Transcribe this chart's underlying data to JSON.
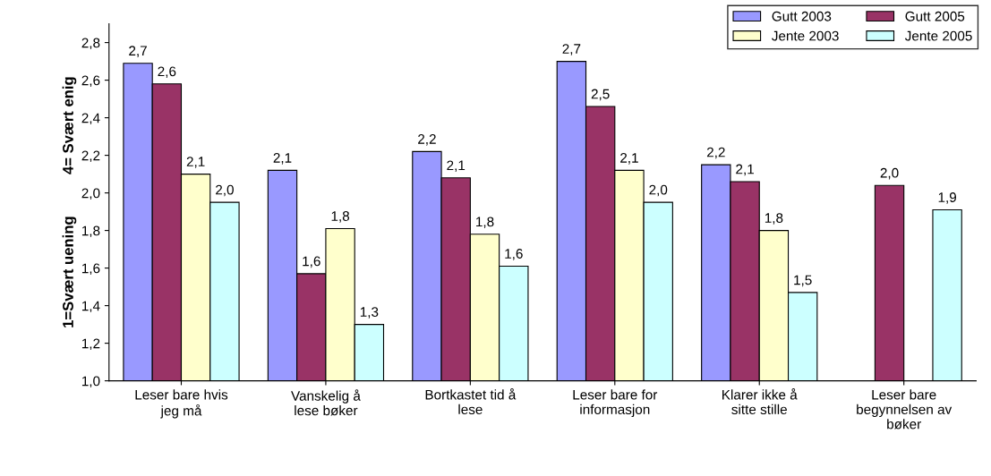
{
  "chart_data": {
    "type": "bar",
    "ylabel": "1=Svært uening          4= Svært enig",
    "categories": [
      "Leser bare hvis\njeg må",
      "Vanskelig å\nlese bøker",
      "Bortkastet tid å\nlese",
      "Leser bare for\ninformasjon",
      "Klarer ikke å\nsitte stille",
      "Leser bare\nbegynnelsen av\nbøker"
    ],
    "series": [
      {
        "name": "Gutt 2003",
        "color": "#9999ff",
        "values": [
          2.69,
          2.12,
          2.22,
          2.7,
          2.15,
          null
        ],
        "value_labels": [
          "2,7",
          "2,1",
          "2,2",
          "2,7",
          "2,2",
          null
        ]
      },
      {
        "name": "Gutt 2005",
        "color": "#993366",
        "values": [
          2.58,
          1.57,
          2.08,
          2.46,
          2.06,
          2.04
        ],
        "value_labels": [
          "2,6",
          "1,6",
          "2,1",
          "2,5",
          "2,1",
          "2,0"
        ]
      },
      {
        "name": "Jente 2003",
        "color": "#ffffcc",
        "values": [
          2.1,
          1.81,
          1.78,
          2.12,
          1.8,
          null
        ],
        "value_labels": [
          "2,1",
          "1,8",
          "1,8",
          "2,1",
          "1,8",
          null
        ]
      },
      {
        "name": "Jente 2005",
        "color": "#ccffff",
        "values": [
          1.95,
          1.3,
          1.61,
          1.95,
          1.47,
          1.91
        ],
        "value_labels": [
          "2,0",
          "1,3",
          "1,6",
          "2,0",
          "1,5",
          "1,9"
        ]
      }
    ],
    "ylim": [
      1.0,
      2.9
    ],
    "yticks": [
      {
        "value": 1.0,
        "label": "1,0"
      },
      {
        "value": 1.2,
        "label": "1,2"
      },
      {
        "value": 1.4,
        "label": "1,4"
      },
      {
        "value": 1.6,
        "label": "1,6"
      },
      {
        "value": 1.8,
        "label": "1,8"
      },
      {
        "value": 2.0,
        "label": "2,0"
      },
      {
        "value": 2.2,
        "label": "2,2"
      },
      {
        "value": 2.4,
        "label": "2,4"
      },
      {
        "value": 2.6,
        "label": "2,6"
      },
      {
        "value": 2.8,
        "label": "2,8"
      }
    ],
    "grid": false,
    "legend": "top right"
  }
}
